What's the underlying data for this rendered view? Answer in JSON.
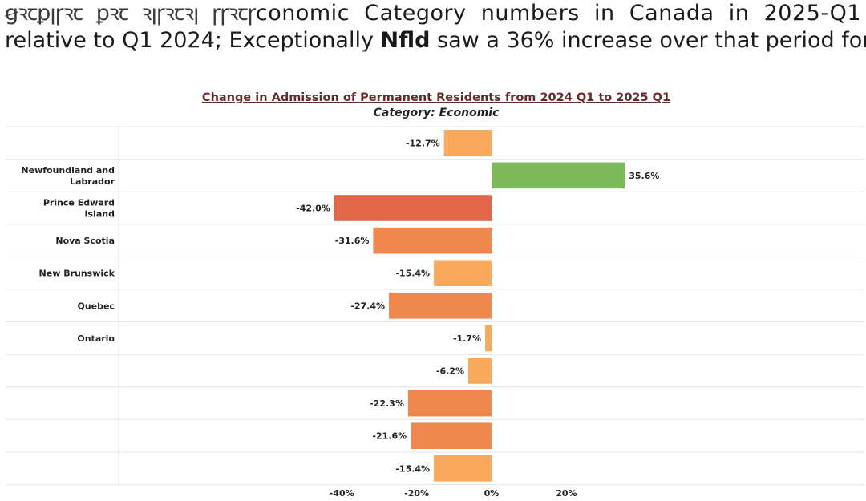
{
  "headline": {
    "garbled_prefix": "ꞡꝛꞇꝑꞁꞅꝛꞇ ꝑꝛꞇ ꝛꞁꞅꝛꞇꝛꞁ ꞅꞅꝛꞇꞅ",
    "line1_rest": "conomic Category numbers in Canada in 2025-Q1",
    "line2_start": "relative to Q1 2024; Exceptionally ",
    "line2_bold": "Nfld",
    "line2_end": " saw a 36% increase over that period for"
  },
  "chart_data": {
    "type": "bar",
    "orientation": "horizontal",
    "title": "Change in Admission of Permanent Residents from 2024 Q1 to 2025 Q1",
    "subtitle": "Category: Economic",
    "categories": [
      "",
      "Newfoundland and Labrador",
      "Prince Edward Island",
      "Nova Scotia",
      "New Brunswick",
      "Quebec",
      "Ontario",
      "",
      "",
      "",
      ""
    ],
    "values": [
      -12.7,
      35.6,
      -42.0,
      -31.6,
      -15.4,
      -27.4,
      -1.7,
      -6.2,
      -22.3,
      -21.6,
      -15.4
    ],
    "value_labels": [
      "-12.7%",
      "35.6%",
      "-42.0%",
      "-31.6%",
      "-15.4%",
      "-27.4%",
      "-1.7%",
      "-6.2%",
      "-22.3%",
      "-21.6%",
      "-15.4%"
    ],
    "x_ticks": [
      -40,
      -20,
      0,
      20
    ],
    "x_tick_labels": [
      "-40%",
      "-20%",
      "0%",
      "20%"
    ],
    "xlim": [
      -42,
      42
    ],
    "grid": "horizontal row separators",
    "colors": {
      "positive": "#7cb95b",
      "light_negative": "#f8a95c",
      "mid_negative": "#f0874e",
      "strong_negative": "#e2674a"
    }
  }
}
